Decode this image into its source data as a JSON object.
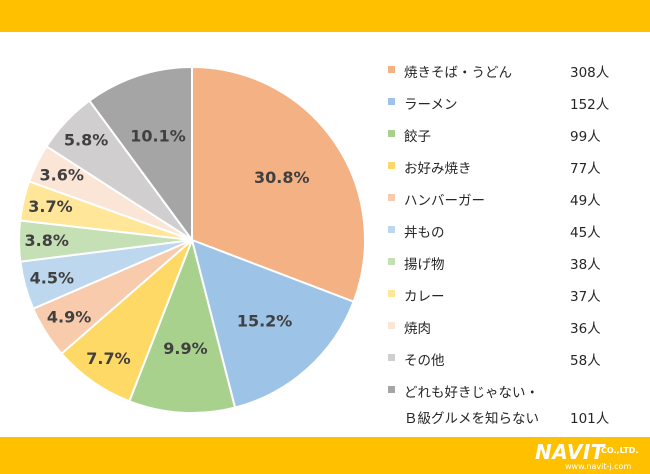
{
  "chart_data": {
    "type": "pie",
    "slices": [
      {
        "label": "焼きそば・うどん",
        "count": "308人",
        "percent": 30.8,
        "percent_label": "30.8%",
        "color": "#F4B183"
      },
      {
        "label": "ラーメン",
        "count": "152人",
        "percent": 15.2,
        "percent_label": "15.2%",
        "color": "#9DC3E6"
      },
      {
        "label": "餃子",
        "count": "99人",
        "percent": 9.9,
        "percent_label": "9.9%",
        "color": "#A9D18E"
      },
      {
        "label": "お好み焼き",
        "count": "77人",
        "percent": 7.7,
        "percent_label": "7.7%",
        "color": "#FFD966"
      },
      {
        "label": "ハンバーガー",
        "count": "49人",
        "percent": 4.9,
        "percent_label": "4.9%",
        "color": "#F8CBAD"
      },
      {
        "label": "丼もの",
        "count": "45人",
        "percent": 4.5,
        "percent_label": "4.5%",
        "color": "#BDD7EE"
      },
      {
        "label": "揚げ物",
        "count": "38人",
        "percent": 3.8,
        "percent_label": "3.8%",
        "color": "#C5E0B4"
      },
      {
        "label": "カレー",
        "count": "37人",
        "percent": 3.7,
        "percent_label": "3.7%",
        "color": "#FFE699"
      },
      {
        "label": "焼肉",
        "count": "36人",
        "percent": 3.6,
        "percent_label": "3.6%",
        "color": "#FBE5D6"
      },
      {
        "label": "その他",
        "count": "58人",
        "percent": 5.8,
        "percent_label": "5.8%",
        "color": "#D0CECE"
      },
      {
        "label": "どれも好きじゃない・\nＢ級グルメを知らない",
        "count": "101人",
        "percent": 10.1,
        "percent_label": "10.1%",
        "color": "#A5A5A5"
      }
    ],
    "legend_position": "right"
  },
  "logo": {
    "main": "NAVIT",
    "sub": "CO.,LTD.",
    "url": "www.navit-j.com"
  },
  "colors": {
    "band": "#FFC000"
  }
}
